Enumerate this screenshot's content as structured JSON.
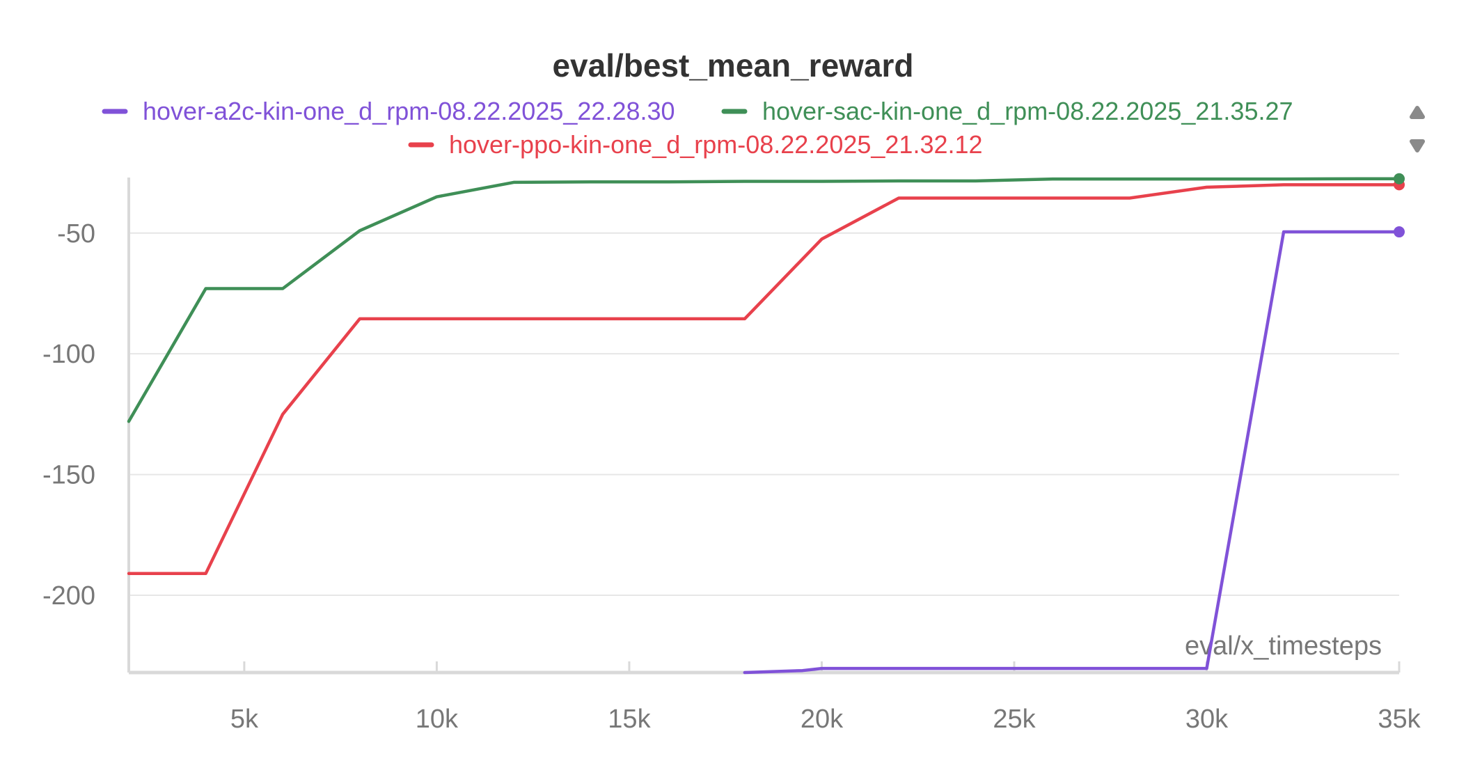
{
  "chart_data": {
    "type": "line",
    "title": "eval/best_mean_reward",
    "xlabel": "eval/x_timesteps",
    "ylabel": "",
    "xlim": [
      2000,
      35000
    ],
    "ylim": [
      -232,
      -27
    ],
    "x_ticks": [
      5000,
      10000,
      15000,
      20000,
      25000,
      30000,
      35000
    ],
    "x_tick_labels": [
      "5k",
      "10k",
      "15k",
      "20k",
      "25k",
      "30k",
      "35k"
    ],
    "y_ticks": [
      -50,
      -100,
      -150,
      -200
    ],
    "y_tick_labels": [
      "-50",
      "-100",
      "-150",
      "-200"
    ],
    "grid": true,
    "legend_position": "top",
    "series": [
      {
        "name": "hover-a2c-kin-one_d_rpm-08.22.2025_22.28.30",
        "color": "#8052d8",
        "x": [
          18000,
          19500,
          20000,
          22000,
          24000,
          26000,
          28000,
          30000,
          32000,
          34000,
          35000
        ],
        "y": [
          -232,
          -231.2,
          -230.3,
          -230.3,
          -230.3,
          -230.3,
          -230.3,
          -230.3,
          -49.5,
          -49.5,
          -49.5
        ]
      },
      {
        "name": "hover-sac-kin-one_d_rpm-08.22.2025_21.35.27",
        "color": "#3f8f57",
        "x": [
          2000,
          4000,
          6000,
          8000,
          10000,
          12000,
          14000,
          16000,
          18000,
          20000,
          22000,
          24000,
          26000,
          28000,
          30000,
          32000,
          34000,
          35000
        ],
        "y": [
          -128,
          -73,
          -73,
          -49,
          -35,
          -29,
          -28.8,
          -28.8,
          -28.6,
          -28.6,
          -28.4,
          -28.4,
          -27.6,
          -27.6,
          -27.6,
          -27.6,
          -27.5,
          -27.5
        ]
      },
      {
        "name": "hover-ppo-kin-one_d_rpm-08.22.2025_21.32.12",
        "color": "#e8414c",
        "x": [
          2000,
          4000,
          6000,
          8000,
          10000,
          12000,
          14000,
          16000,
          18000,
          20000,
          22000,
          24000,
          26000,
          28000,
          30000,
          32000,
          34000,
          35000
        ],
        "y": [
          -191,
          -191,
          -125,
          -85.5,
          -85.5,
          -85.5,
          -85.5,
          -85.5,
          -85.5,
          -52.5,
          -35.5,
          -35.5,
          -35.5,
          -35.5,
          -31,
          -30,
          -30,
          -30
        ]
      }
    ]
  },
  "legend_controls": {
    "up_icon": "triangle-up-icon",
    "down_icon": "triangle-down-icon",
    "color": "#8a8a8a"
  },
  "style": {
    "title_color": "#333333",
    "axis_text_color": "#777777",
    "grid_color": "#e6e6e6",
    "axis_color": "#d9d9d9"
  }
}
